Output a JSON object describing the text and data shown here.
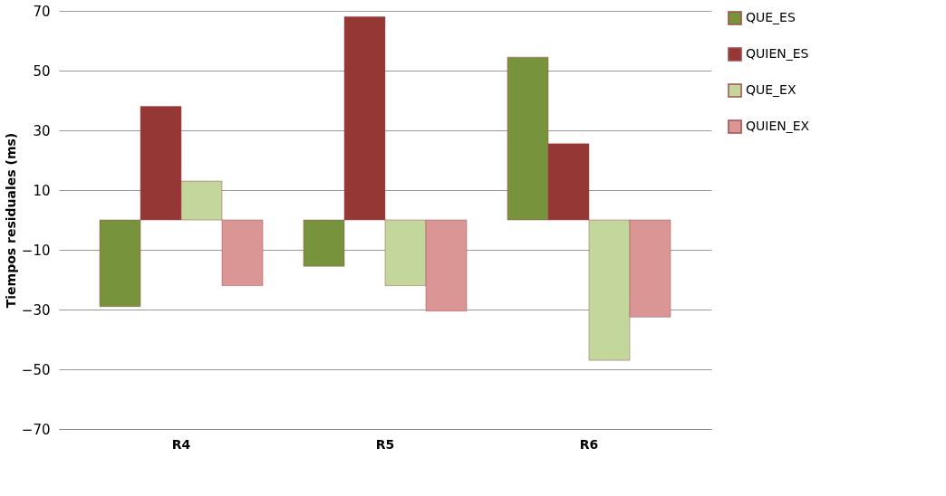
{
  "chart_data": {
    "type": "bar",
    "ylabel": "Tiempos residuales (ms)",
    "categories": [
      "R4",
      "R5",
      "R6"
    ],
    "series": [
      {
        "name": "QUE_ES",
        "color": "#77933c",
        "values": [
          -29,
          -15.5,
          54.5
        ]
      },
      {
        "name": "QUIEN_ES",
        "color": "#953735",
        "values": [
          38,
          68,
          25.5
        ]
      },
      {
        "name": "QUE_EX",
        "color": "#c3d69b",
        "values": [
          13,
          -22,
          -47
        ]
      },
      {
        "name": "QUIEN_EX",
        "color": "#d99694",
        "values": [
          -22,
          -30.5,
          -32.5
        ]
      }
    ],
    "ylim": [
      -70,
      70
    ],
    "yticks": [
      -70,
      -50,
      -30,
      -10,
      10,
      30,
      50,
      70
    ],
    "grid": "y",
    "legend": "right"
  }
}
